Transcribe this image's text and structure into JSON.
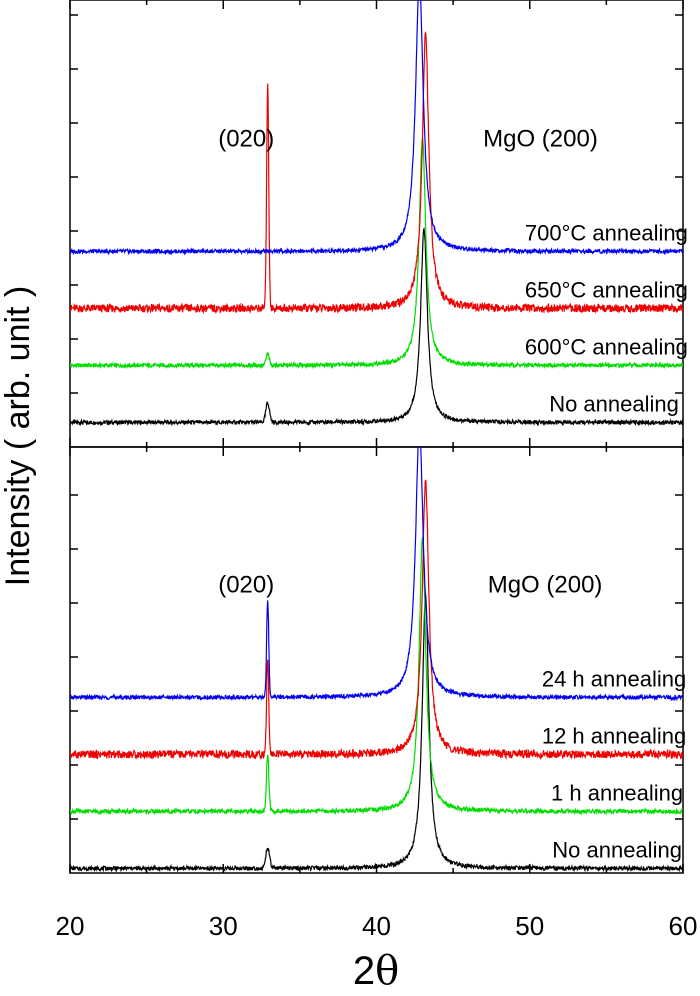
{
  "chart_data": [
    {
      "type": "line",
      "panel": "top",
      "xlim": [
        20,
        60
      ],
      "grid": false,
      "legend": "none",
      "annotations": [
        {
          "text": "(020)",
          "x": 31.5,
          "y": 1.23
        },
        {
          "text": "MgO (200)",
          "x": 50.7,
          "y": 1.23
        }
      ],
      "peaks": [
        {
          "label": "(020)",
          "x": 32.9
        },
        {
          "label": "MgO (200)",
          "x": 43.1
        }
      ],
      "series": [
        {
          "name": "No annealing",
          "label_x": 55.5,
          "color": "#000000",
          "baseline": 0.02,
          "peaks": [
            {
              "x": 32.9,
              "h": 0.085,
              "w": 0.12
            },
            {
              "x": 43.1,
              "h": 0.85,
              "w": 0.26
            }
          ]
        },
        {
          "name": "600°C annealing",
          "label_x": 55.0,
          "color": "#00dd00",
          "baseline": 0.27,
          "peaks": [
            {
              "x": 32.9,
              "h": 0.05,
              "w": 0.1
            },
            {
              "x": 43.0,
              "h": 1.0,
              "w": 0.26
            }
          ]
        },
        {
          "name": "650°C annealing",
          "label_x": 55.0,
          "color": "#ee0000",
          "baseline": 0.52,
          "peaks": [
            {
              "x": 32.9,
              "h": 0.97,
              "w": 0.07
            },
            {
              "x": 43.2,
              "h": 1.2,
              "w": 0.26
            }
          ]
        },
        {
          "name": "700°C annealing",
          "label_x": 55.0,
          "color": "#0000ee",
          "baseline": 0.77,
          "peaks": [
            {
              "x": 32.9,
              "h": 0.0,
              "w": 0.1
            },
            {
              "x": 42.8,
              "h": 1.2,
              "w": 0.3
            }
          ]
        }
      ]
    },
    {
      "type": "line",
      "panel": "bottom",
      "xlim": [
        20,
        60
      ],
      "grid": false,
      "legend": "none",
      "annotations": [
        {
          "text": "(020)",
          "x": 31.5,
          "y": 1.23
        },
        {
          "text": "MgO (200)",
          "x": 51.0,
          "y": 1.23
        }
      ],
      "peaks": [
        {
          "label": "(020)",
          "x": 32.9
        },
        {
          "label": "MgO (200)",
          "x": 43.1
        }
      ],
      "series": [
        {
          "name": "No annealing",
          "label_x": 55.7,
          "color": "#000000",
          "baseline": 0.02,
          "peaks": [
            {
              "x": 32.9,
              "h": 0.09,
              "w": 0.12
            },
            {
              "x": 43.2,
              "h": 1.2,
              "w": 0.26
            }
          ]
        },
        {
          "name": "1 h annealing",
          "label_x": 55.7,
          "color": "#00dd00",
          "baseline": 0.27,
          "peaks": [
            {
              "x": 32.9,
              "h": 0.25,
              "w": 0.08
            },
            {
              "x": 43.0,
              "h": 1.2,
              "w": 0.26
            }
          ]
        },
        {
          "name": "12 h annealing",
          "label_x": 55.5,
          "color": "#ee0000",
          "baseline": 0.52,
          "peaks": [
            {
              "x": 32.9,
              "h": 0.42,
              "w": 0.07
            },
            {
              "x": 43.2,
              "h": 1.2,
              "w": 0.26
            }
          ]
        },
        {
          "name": "24 h annealing",
          "label_x": 55.5,
          "color": "#0000ee",
          "baseline": 0.77,
          "peaks": [
            {
              "x": 32.9,
              "h": 0.42,
              "w": 0.07
            },
            {
              "x": 42.8,
              "h": 1.2,
              "w": 0.3
            }
          ]
        }
      ]
    }
  ],
  "axes": {
    "x_label_prefix": "2",
    "x_label_symbol": "θ",
    "y_label": "Intensity ( arb. unit )",
    "x_ticks": [
      20,
      30,
      40,
      50,
      60
    ],
    "x_ticks_labels": [
      "20",
      "30",
      "40",
      "50",
      "60"
    ]
  }
}
